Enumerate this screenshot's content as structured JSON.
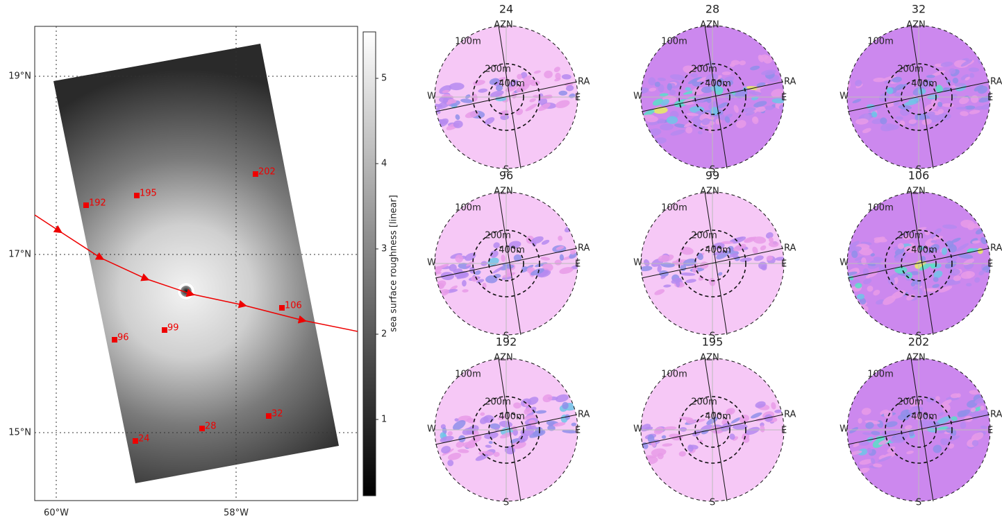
{
  "map": {
    "lat_labels": [
      "19°N",
      "17°N",
      "15°N"
    ],
    "lon_labels": [
      "60°W",
      "58°W"
    ],
    "colorbar": {
      "label": "sea surface roughness [linear]",
      "ticks": [
        "1",
        "2",
        "3",
        "4",
        "5"
      ]
    },
    "points": [
      {
        "label": "24"
      },
      {
        "label": "28"
      },
      {
        "label": "32"
      },
      {
        "label": "96"
      },
      {
        "label": "99"
      },
      {
        "label": "106"
      },
      {
        "label": "192"
      },
      {
        "label": "195"
      },
      {
        "label": "202"
      }
    ]
  },
  "panels": [
    {
      "title": "24"
    },
    {
      "title": "28"
    },
    {
      "title": "32"
    },
    {
      "title": "96"
    },
    {
      "title": "99"
    },
    {
      "title": "106"
    },
    {
      "title": "192"
    },
    {
      "title": "195"
    },
    {
      "title": "202"
    }
  ],
  "panel_labels": {
    "azimuth": "AZN",
    "range": "RA",
    "west": "W",
    "east": "E",
    "south": "S",
    "r100": "100m",
    "r200": "200m",
    "r400": "400m"
  }
}
